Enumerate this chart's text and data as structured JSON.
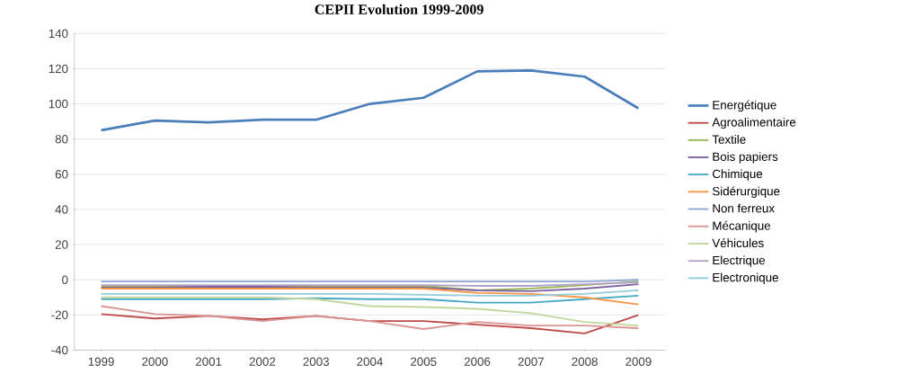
{
  "chart_data": {
    "type": "line",
    "title": "CEPII Evolution 1999-2009",
    "categories": [
      "1999",
      "2000",
      "2001",
      "2002",
      "2003",
      "2004",
      "2005",
      "2006",
      "2007",
      "2008",
      "2009"
    ],
    "ylim": [
      -40,
      140
    ],
    "yticks": [
      -40,
      -20,
      0,
      20,
      40,
      60,
      80,
      100,
      120,
      140
    ],
    "grid": "y",
    "legend": "right",
    "series": [
      {
        "name": "Energétique",
        "color": "#4a7ebb",
        "values": [
          85,
          90.5,
          89.5,
          91,
          91,
          100,
          103.5,
          118.5,
          119,
          115.5,
          97.5
        ]
      },
      {
        "name": "Agroalimentaire",
        "color": "#be4b48",
        "values": [
          -19.5,
          -22,
          -20.5,
          -22.5,
          -20.5,
          -23.5,
          -23.5,
          -25.5,
          -27.5,
          -30.5,
          -20
        ]
      },
      {
        "name": "Textile",
        "color": "#98b954",
        "values": [
          -4,
          -4,
          -4,
          -4,
          -4,
          -4,
          -3.5,
          -6,
          -5,
          -3,
          -1
        ]
      },
      {
        "name": "Bois papiers",
        "color": "#7d60a0",
        "values": [
          -4.5,
          -4.5,
          -4,
          -4,
          -4.5,
          -4.5,
          -4.5,
          -6,
          -6.5,
          -5,
          -2.5
        ]
      },
      {
        "name": "Chimique",
        "color": "#46aac5",
        "values": [
          -11,
          -11,
          -11,
          -11,
          -10.5,
          -11,
          -11,
          -13,
          -13,
          -11,
          -9
        ]
      },
      {
        "name": "Sidérurgique",
        "color": "#f79646",
        "values": [
          -5,
          -5,
          -5,
          -5,
          -5,
          -5,
          -5,
          -7.5,
          -8,
          -10,
          -14
        ]
      },
      {
        "name": "Non ferreux",
        "color": "#8ea5d6",
        "values": [
          -1,
          -1,
          -1,
          -1,
          -1,
          -1,
          -1,
          -1,
          -1,
          -1,
          0
        ]
      },
      {
        "name": "Mécanique",
        "color": "#d99694",
        "values": [
          -15,
          -19.5,
          -20.5,
          -23.5,
          -20.5,
          -23.5,
          -28,
          -24,
          -26,
          -26,
          -27.5
        ]
      },
      {
        "name": "Véhicules",
        "color": "#c3d69b",
        "values": [
          -10,
          -10,
          -10,
          -10,
          -11,
          -15,
          -15.5,
          -16.5,
          -19,
          -24,
          -26
        ]
      },
      {
        "name": "Electrique",
        "color": "#b3a2c7",
        "values": [
          -3,
          -3,
          -3,
          -3,
          -3,
          -3,
          -3,
          -3.5,
          -3.5,
          -2.5,
          -1.5
        ]
      },
      {
        "name": "Electronique",
        "color": "#93cddd",
        "values": [
          -8,
          -8,
          -8,
          -8,
          -8,
          -8,
          -8.5,
          -9,
          -9,
          -8,
          -6
        ]
      }
    ]
  }
}
